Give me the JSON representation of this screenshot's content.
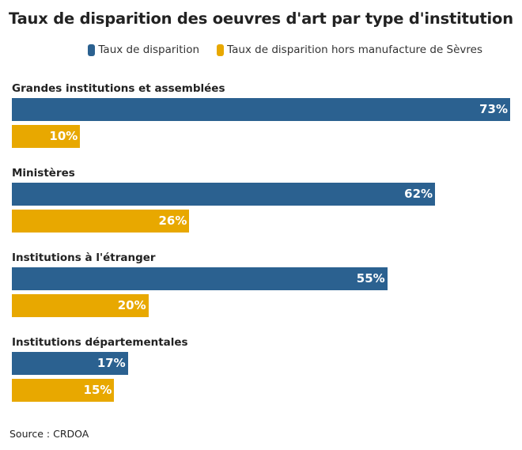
{
  "chart_data": {
    "type": "bar",
    "orientation": "horizontal",
    "title": "Taux de disparition des oeuvres d'art par type d'institution",
    "categories": [
      "Grandes institutions et assemblées",
      "Ministères",
      "Institutions à l'étranger",
      "Institutions départementales"
    ],
    "series": [
      {
        "name": "Taux de disparition",
        "values": [
          73,
          62,
          55,
          17
        ],
        "color": "#2b6190"
      },
      {
        "name": "Taux de disparition hors manufacture de Sèvres",
        "values": [
          10,
          26,
          20,
          15
        ],
        "color": "#e8a800"
      }
    ],
    "unit": "%",
    "xlim": [
      0,
      73
    ],
    "grid": false,
    "legend": "top-right",
    "source": "Source : CRDOA"
  }
}
